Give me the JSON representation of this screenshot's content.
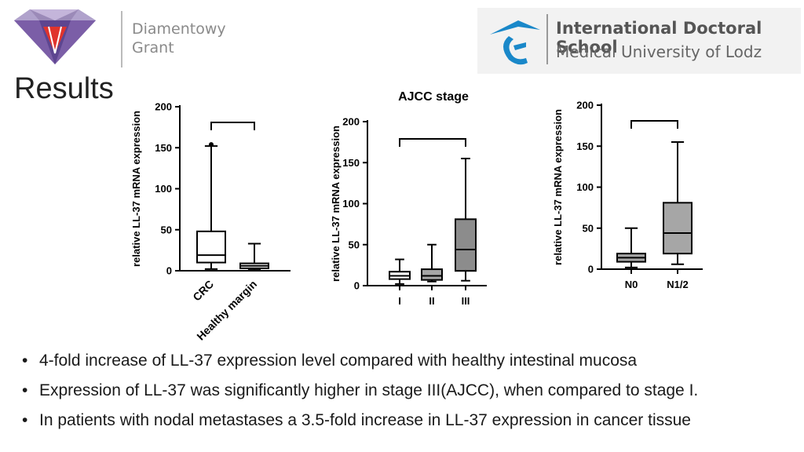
{
  "header": {
    "left_logo_line1": "Diamentowy",
    "left_logo_line2": "Grant",
    "right_logo_title": "International Doctoral School",
    "right_logo_subtitle": "Medical University of Lodz"
  },
  "slide_title": "Results",
  "colors": {
    "dark_box": "#8c8c8c",
    "mid_box": "#a6a6a6",
    "light_box": "#ffffff",
    "logo_blue": "#1a88c9",
    "logo_purple": "#7b5ea7"
  },
  "chart_data": [
    {
      "type": "boxplot",
      "title": "",
      "ylabel": "relative LL-37 mRNA expression",
      "ylim": [
        0,
        200
      ],
      "yticks": [
        0,
        50,
        100,
        150,
        200
      ],
      "categories": [
        "CRC",
        "Healthy margin"
      ],
      "label_rotation": "rotated",
      "boxes": [
        {
          "min": 2,
          "q1": 10,
          "median": 19,
          "q3": 48,
          "max": 152,
          "outliers": [
            154
          ],
          "fill": "#ffffff"
        },
        {
          "min": 1,
          "q1": 3,
          "median": 6,
          "q3": 9,
          "max": 33,
          "outliers": [],
          "fill": "#ffffff"
        }
      ],
      "bracket": [
        0,
        1
      ]
    },
    {
      "type": "boxplot",
      "title": "AJCC stage",
      "ylabel": "relative LL-37 mRNA expression",
      "ylim": [
        0,
        200
      ],
      "yticks": [
        0,
        50,
        100,
        150,
        200
      ],
      "categories": [
        "I",
        "II",
        "III"
      ],
      "label_rotation": "none",
      "boxes": [
        {
          "min": 2,
          "q1": 8,
          "median": 12,
          "q3": 17,
          "max": 32,
          "outliers": [],
          "fill": "#ffffff"
        },
        {
          "min": 5,
          "q1": 7,
          "median": 12,
          "q3": 20,
          "max": 50,
          "outliers": [],
          "fill": "#a6a6a6"
        },
        {
          "min": 6,
          "q1": 18,
          "median": 44,
          "q3": 81,
          "max": 155,
          "outliers": [],
          "fill": "#8c8c8c"
        }
      ],
      "bracket": [
        0,
        2
      ]
    },
    {
      "type": "boxplot",
      "title": "",
      "ylabel": "relative LL-37 mRNA expression",
      "ylim": [
        0,
        200
      ],
      "yticks": [
        0,
        50,
        100,
        150,
        200
      ],
      "categories": [
        "N0",
        "N1/2"
      ],
      "label_rotation": "none",
      "boxes": [
        {
          "min": 2,
          "q1": 9,
          "median": 14,
          "q3": 19,
          "max": 50,
          "outliers": [],
          "fill": "#a6a6a6"
        },
        {
          "min": 6,
          "q1": 19,
          "median": 44,
          "q3": 81,
          "max": 155,
          "outliers": [],
          "fill": "#a6a6a6"
        }
      ],
      "bracket": [
        0,
        1
      ]
    }
  ],
  "bullets": [
    "4-fold increase of LL-37 expression level compared with healthy intestinal mucosa",
    "Expression of LL-37 was significantly higher in stage III(AJCC), when compared to stage I.",
    "In patients with nodal metastases a 3.5-fold increase in LL-37 expression in cancer tissue"
  ],
  "bullet_symbol": "•"
}
